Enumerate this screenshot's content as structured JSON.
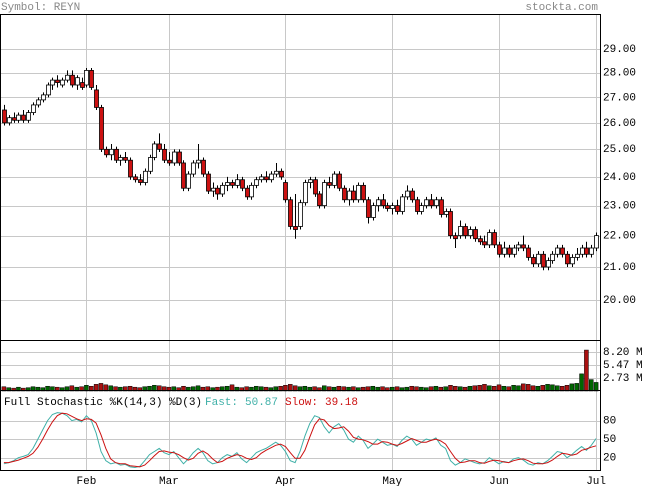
{
  "header": {
    "symbol": "Symbol: REYN",
    "site": "stockta.com"
  },
  "chart_data": [
    {
      "type": "candlestick",
      "log": true,
      "grid": true,
      "ylim": [
        18.82,
        30.55
      ],
      "yticks": [
        {
          "value": 29,
          "label": "29.00"
        },
        {
          "value": 28,
          "label": "28.00"
        },
        {
          "value": 27,
          "label": "27.00"
        },
        {
          "value": 26,
          "label": "26.00"
        },
        {
          "value": 25,
          "label": "25.00"
        },
        {
          "value": 24,
          "label": "24.00"
        },
        {
          "value": 23,
          "label": "23.00"
        },
        {
          "value": 22,
          "label": "22.00"
        },
        {
          "value": 21,
          "label": "21.00"
        },
        {
          "value": 20,
          "label": "20.00"
        }
      ],
      "xlim": [
        -0.8,
        122.8
      ],
      "xticks": [
        {
          "value": 17,
          "label": "Feb"
        },
        {
          "value": 34,
          "label": "Mar"
        },
        {
          "value": 58,
          "label": "Apr"
        },
        {
          "value": 80,
          "label": "May"
        },
        {
          "value": 102,
          "label": "Jun"
        },
        {
          "value": 122,
          "label": "Jul"
        }
      ],
      "up_color": "#ffffff",
      "down_color": "#cc1111",
      "ohlc": [
        [
          26.5,
          26.7,
          25.9,
          26.0
        ],
        [
          26.0,
          26.3,
          25.9,
          26.2
        ],
        [
          26.2,
          26.4,
          26.0,
          26.1
        ],
        [
          26.1,
          26.4,
          26.0,
          26.3
        ],
        [
          26.3,
          26.5,
          26.0,
          26.1
        ],
        [
          26.1,
          26.5,
          26.0,
          26.4
        ],
        [
          26.4,
          26.8,
          26.3,
          26.7
        ],
        [
          26.7,
          27.0,
          26.6,
          26.9
        ],
        [
          26.9,
          27.2,
          26.8,
          27.1
        ],
        [
          27.1,
          27.6,
          27.0,
          27.5
        ],
        [
          27.5,
          27.8,
          27.3,
          27.7
        ],
        [
          27.7,
          27.9,
          27.4,
          27.6
        ],
        [
          27.5,
          27.8,
          27.4,
          27.7
        ],
        [
          27.7,
          28.1,
          27.6,
          27.9
        ],
        [
          27.9,
          28.1,
          27.4,
          27.5
        ],
        [
          27.5,
          27.9,
          27.3,
          27.8
        ],
        [
          27.6,
          27.8,
          27.3,
          27.4
        ],
        [
          27.5,
          28.2,
          27.4,
          28.1
        ],
        [
          28.1,
          28.2,
          27.3,
          27.4
        ],
        [
          27.3,
          27.5,
          26.5,
          26.6
        ],
        [
          26.6,
          26.7,
          24.9,
          25.0
        ],
        [
          25.0,
          25.1,
          24.7,
          24.8
        ],
        [
          24.8,
          25.2,
          24.6,
          25.0
        ],
        [
          25.0,
          25.1,
          24.5,
          24.6
        ],
        [
          24.6,
          24.8,
          24.4,
          24.7
        ],
        [
          24.7,
          24.9,
          24.5,
          24.6
        ],
        [
          24.6,
          24.7,
          23.9,
          24.0
        ],
        [
          24.0,
          24.1,
          23.8,
          23.9
        ],
        [
          23.9,
          24.1,
          23.7,
          23.8
        ],
        [
          23.8,
          24.3,
          23.7,
          24.2
        ],
        [
          24.2,
          24.8,
          24.1,
          24.7
        ],
        [
          24.7,
          25.3,
          24.6,
          25.2
        ],
        [
          25.2,
          25.6,
          24.9,
          25.0
        ],
        [
          25.0,
          25.2,
          24.5,
          24.6
        ],
        [
          24.6,
          24.9,
          24.4,
          24.5
        ],
        [
          24.5,
          25.0,
          24.4,
          24.9
        ],
        [
          24.9,
          25.0,
          24.4,
          24.5
        ],
        [
          24.5,
          24.6,
          23.5,
          23.6
        ],
        [
          23.6,
          24.2,
          23.5,
          24.1
        ],
        [
          24.1,
          24.6,
          24.0,
          24.5
        ],
        [
          24.5,
          25.2,
          24.3,
          24.6
        ],
        [
          24.6,
          24.7,
          24.0,
          24.1
        ],
        [
          24.1,
          24.2,
          23.4,
          23.5
        ],
        [
          23.5,
          23.8,
          23.3,
          23.6
        ],
        [
          23.6,
          23.7,
          23.2,
          23.4
        ],
        [
          23.4,
          23.8,
          23.3,
          23.7
        ],
        [
          23.7,
          24.0,
          23.5,
          23.8
        ],
        [
          23.8,
          23.9,
          23.6,
          23.7
        ],
        [
          23.7,
          24.1,
          23.6,
          23.9
        ],
        [
          23.9,
          24.0,
          23.5,
          23.6
        ],
        [
          23.6,
          23.7,
          23.2,
          23.3
        ],
        [
          23.3,
          23.8,
          23.2,
          23.7
        ],
        [
          23.7,
          24.0,
          23.6,
          23.9
        ],
        [
          23.9,
          24.1,
          23.8,
          24.0
        ],
        [
          24.0,
          24.2,
          23.8,
          23.9
        ],
        [
          23.9,
          24.2,
          23.8,
          24.1
        ],
        [
          24.1,
          24.5,
          24.0,
          24.2
        ],
        [
          24.2,
          24.3,
          23.9,
          24.0
        ],
        [
          23.8,
          23.9,
          23.1,
          23.2
        ],
        [
          23.2,
          23.3,
          22.2,
          22.3
        ],
        [
          22.3,
          23.4,
          21.9,
          22.2
        ],
        [
          22.3,
          23.2,
          22.2,
          23.1
        ],
        [
          23.1,
          23.9,
          23.0,
          23.8
        ],
        [
          23.8,
          24.0,
          23.6,
          23.9
        ],
        [
          23.9,
          24.0,
          23.3,
          23.4
        ],
        [
          23.4,
          23.5,
          22.9,
          23.0
        ],
        [
          23.0,
          23.9,
          22.9,
          23.8
        ],
        [
          23.8,
          24.0,
          23.6,
          23.7
        ],
        [
          23.7,
          24.2,
          23.6,
          24.1
        ],
        [
          24.1,
          24.2,
          23.5,
          23.6
        ],
        [
          23.6,
          23.7,
          23.1,
          23.2
        ],
        [
          23.2,
          23.6,
          23.0,
          23.5
        ],
        [
          23.5,
          23.7,
          23.1,
          23.2
        ],
        [
          23.2,
          23.8,
          23.1,
          23.7
        ],
        [
          23.7,
          23.8,
          23.1,
          23.2
        ],
        [
          23.2,
          23.3,
          22.4,
          22.6
        ],
        [
          22.6,
          23.1,
          22.5,
          23.0
        ],
        [
          23.0,
          23.3,
          22.8,
          23.2
        ],
        [
          23.2,
          23.4,
          22.9,
          23.0
        ],
        [
          23.0,
          23.1,
          22.8,
          22.9
        ],
        [
          22.9,
          23.1,
          22.7,
          23.0
        ],
        [
          23.0,
          23.2,
          22.7,
          22.8
        ],
        [
          22.8,
          23.4,
          22.7,
          23.3
        ],
        [
          23.3,
          23.7,
          23.2,
          23.5
        ],
        [
          23.5,
          23.6,
          23.1,
          23.2
        ],
        [
          23.2,
          23.3,
          22.7,
          22.8
        ],
        [
          22.8,
          23.1,
          22.7,
          23.0
        ],
        [
          23.0,
          23.3,
          22.9,
          23.2
        ],
        [
          23.2,
          23.4,
          22.9,
          23.0
        ],
        [
          23.0,
          23.3,
          22.9,
          23.2
        ],
        [
          23.2,
          23.3,
          22.6,
          22.7
        ],
        [
          22.7,
          22.9,
          22.6,
          22.8
        ],
        [
          22.8,
          22.9,
          21.9,
          22.0
        ],
        [
          22.0,
          22.1,
          21.6,
          21.9
        ],
        [
          22.0,
          22.5,
          21.9,
          22.3
        ],
        [
          22.3,
          22.4,
          21.9,
          22.0
        ],
        [
          22.0,
          22.3,
          21.9,
          22.2
        ],
        [
          22.2,
          22.3,
          21.8,
          21.9
        ],
        [
          21.9,
          22.0,
          21.7,
          21.8
        ],
        [
          21.8,
          22.0,
          21.6,
          21.7
        ],
        [
          21.7,
          22.2,
          21.6,
          22.1
        ],
        [
          22.1,
          22.2,
          21.6,
          21.7
        ],
        [
          21.7,
          21.8,
          21.3,
          21.4
        ],
        [
          21.4,
          21.8,
          21.3,
          21.6
        ],
        [
          21.6,
          21.7,
          21.3,
          21.4
        ],
        [
          21.4,
          21.7,
          21.3,
          21.6
        ],
        [
          21.6,
          21.8,
          21.5,
          21.7
        ],
        [
          21.7,
          22.0,
          21.5,
          21.6
        ],
        [
          21.6,
          21.7,
          21.2,
          21.3
        ],
        [
          21.3,
          21.4,
          21.0,
          21.1
        ],
        [
          21.1,
          21.5,
          21.0,
          21.4
        ],
        [
          21.4,
          21.5,
          20.9,
          21.0
        ],
        [
          21.0,
          21.3,
          20.9,
          21.2
        ],
        [
          21.2,
          21.5,
          21.1,
          21.4
        ],
        [
          21.4,
          21.7,
          21.3,
          21.6
        ],
        [
          21.6,
          21.7,
          21.3,
          21.4
        ],
        [
          21.4,
          21.5,
          21.0,
          21.1
        ],
        [
          21.1,
          21.4,
          21.0,
          21.3
        ],
        [
          21.3,
          21.6,
          21.2,
          21.4
        ],
        [
          21.4,
          21.7,
          21.3,
          21.6
        ],
        [
          21.6,
          21.8,
          21.3,
          21.4
        ],
        [
          21.4,
          21.7,
          21.3,
          21.6
        ],
        [
          21.6,
          22.1,
          21.5,
          22.0
        ]
      ]
    },
    {
      "type": "bar",
      "grid": true,
      "ylim": [
        0,
        10.5
      ],
      "yticks": [
        {
          "value": 8.2,
          "label": "8.20 M"
        },
        {
          "value": 5.47,
          "label": "5.47 M"
        },
        {
          "value": 2.73,
          "label": "2.73 M"
        }
      ],
      "up_color": "#006600",
      "down_color": "#aa1111",
      "values": [
        0.9,
        0.7,
        0.6,
        0.8,
        0.6,
        0.7,
        0.9,
        0.8,
        0.7,
        1.0,
        0.9,
        0.8,
        0.7,
        0.9,
        1.1,
        0.8,
        0.9,
        1.2,
        1.0,
        1.4,
        1.6,
        1.3,
        1.1,
        0.9,
        0.8,
        0.9,
        1.0,
        0.8,
        0.7,
        0.9,
        1.0,
        1.2,
        1.1,
        0.9,
        0.8,
        0.9,
        0.7,
        1.0,
        0.8,
        0.9,
        1.1,
        0.8,
        0.9,
        0.7,
        0.8,
        0.9,
        1.0,
        1.3,
        0.8,
        0.7,
        0.9,
        0.8,
        1.0,
        0.9,
        0.8,
        0.7,
        0.9,
        1.0,
        1.2,
        1.4,
        1.1,
        0.9,
        1.0,
        0.8,
        0.9,
        0.7,
        1.1,
        0.9,
        0.8,
        1.0,
        0.9,
        0.8,
        0.9,
        0.7,
        0.8,
        0.9,
        1.0,
        0.8,
        0.9,
        0.7,
        0.8,
        0.9,
        0.7,
        0.8,
        1.0,
        0.9,
        0.8,
        0.7,
        0.9,
        1.0,
        0.8,
        0.9,
        1.2,
        1.0,
        0.9,
        0.8,
        1.0,
        1.1,
        1.2,
        1.4,
        1.1,
        1.0,
        1.3,
        1.0,
        0.9,
        1.2,
        1.1,
        1.5,
        1.4,
        1.1,
        1.0,
        1.2,
        1.4,
        1.3,
        1.1,
        1.0,
        1.2,
        1.5,
        1.6,
        3.6,
        8.6,
        2.4,
        1.8
      ]
    },
    {
      "type": "line",
      "title": "Full Stochastic %K(14,3) %D(3)",
      "grid": true,
      "ylim": [
        0,
        128
      ],
      "yticks": [
        80,
        50,
        20
      ],
      "series": [
        {
          "name": "Fast:",
          "color": "#3fb0a8",
          "values": [
            10,
            12,
            15,
            20,
            22,
            25,
            35,
            50,
            65,
            80,
            90,
            93,
            92,
            88,
            80,
            82,
            78,
            88,
            80,
            60,
            30,
            15,
            10,
            12,
            8,
            9,
            5,
            4,
            6,
            15,
            25,
            30,
            35,
            28,
            25,
            30,
            20,
            10,
            18,
            28,
            35,
            28,
            15,
            10,
            12,
            20,
            25,
            22,
            28,
            18,
            12,
            20,
            28,
            32,
            35,
            40,
            45,
            40,
            30,
            15,
            12,
            30,
            55,
            75,
            88,
            85,
            70,
            60,
            70,
            75,
            65,
            50,
            45,
            55,
            48,
            35,
            42,
            50,
            45,
            40,
            42,
            38,
            48,
            55,
            50,
            40,
            45,
            50,
            48,
            52,
            40,
            35,
            15,
            8,
            12,
            18,
            15,
            12,
            10,
            12,
            20,
            15,
            10,
            14,
            12,
            18,
            20,
            16,
            10,
            8,
            12,
            10,
            15,
            22,
            30,
            28,
            20,
            25,
            32,
            38,
            32,
            40,
            50.87
          ]
        },
        {
          "name": "Slow:",
          "color": "#cc1111",
          "values": [
            12,
            12,
            14,
            16,
            19,
            22,
            27,
            37,
            50,
            65,
            78,
            88,
            92,
            91,
            87,
            83,
            80,
            83,
            82,
            76,
            57,
            35,
            18,
            12,
            10,
            10,
            7,
            6,
            5,
            8,
            15,
            23,
            30,
            31,
            29,
            28,
            25,
            20,
            16,
            19,
            27,
            31,
            26,
            18,
            12,
            14,
            19,
            22,
            25,
            23,
            19,
            17,
            20,
            27,
            32,
            36,
            40,
            42,
            38,
            28,
            19,
            19,
            32,
            53,
            73,
            83,
            81,
            72,
            67,
            68,
            70,
            63,
            53,
            50,
            49,
            46,
            42,
            42,
            46,
            45,
            42,
            40,
            43,
            47,
            51,
            48,
            45,
            45,
            48,
            50,
            47,
            42,
            30,
            19,
            12,
            13,
            15,
            15,
            12,
            11,
            14,
            16,
            15,
            13,
            12,
            15,
            17,
            18,
            15,
            11,
            10,
            10,
            12,
            16,
            22,
            27,
            26,
            24,
            26,
            32,
            34,
            37,
            39.18
          ]
        }
      ]
    }
  ]
}
